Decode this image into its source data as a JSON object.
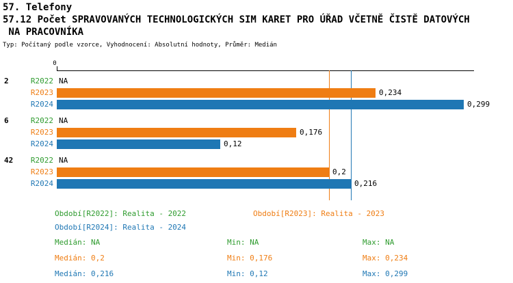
{
  "header": {
    "line1": "57. Telefony",
    "line2": "57.12 Počet SPRAVOVANÝCH TECHNOLOGICKÝCH SIM KARET PRO ÚŘAD VČETNĚ ČISTĚ DATOVÝCH",
    "line3": " NA PRACOVNÍKA",
    "subtitle": "Typ: Počítaný podle vzorce, Vyhodnocení: Absolutní hodnoty, Průměr: Medián"
  },
  "series_colors": {
    "R2022": "#2e9b2e",
    "R2023": "#ef7d13",
    "R2024": "#1f77b4"
  },
  "chart_data": {
    "type": "bar",
    "orientation": "horizontal",
    "x_axis": {
      "zero_label": "0",
      "min": 0,
      "max": 0.305,
      "grid": false
    },
    "groups": [
      {
        "label": "2",
        "rows": [
          {
            "series": "R2022",
            "value": null,
            "display": "NA"
          },
          {
            "series": "R2023",
            "value": 0.234,
            "display": "0,234"
          },
          {
            "series": "R2024",
            "value": 0.299,
            "display": "0,299"
          }
        ]
      },
      {
        "label": "6",
        "rows": [
          {
            "series": "R2022",
            "value": null,
            "display": "NA"
          },
          {
            "series": "R2023",
            "value": 0.176,
            "display": "0,176"
          },
          {
            "series": "R2024",
            "value": 0.12,
            "display": "0,12"
          }
        ]
      },
      {
        "label": "42",
        "rows": [
          {
            "series": "R2022",
            "value": null,
            "display": "NA"
          },
          {
            "series": "R2023",
            "value": 0.2,
            "display": "0,2"
          },
          {
            "series": "R2024",
            "value": 0.216,
            "display": "0,216"
          }
        ]
      }
    ],
    "median_lines": [
      {
        "series": "R2023",
        "value": 0.2
      },
      {
        "series": "R2024",
        "value": 0.216
      }
    ],
    "legend": [
      {
        "series": "R2022",
        "label": "Období[R2022]: Realita - 2022",
        "row": 0,
        "col": 0
      },
      {
        "series": "R2023",
        "label": "Období[R2023]: Realita - 2023",
        "row": 0,
        "col": 1
      },
      {
        "series": "R2024",
        "label": "Období[R2024]: Realita - 2024",
        "row": 1,
        "col": 0
      }
    ],
    "stats": [
      {
        "series": "R2022",
        "median": "Medián: NA",
        "min": "Min: NA",
        "max": "Max: NA"
      },
      {
        "series": "R2023",
        "median": "Medián: 0,2",
        "min": "Min: 0,176",
        "max": "Max: 0,234"
      },
      {
        "series": "R2024",
        "median": "Medián: 0,216",
        "min": "Min: 0,12",
        "max": "Max: 0,299"
      }
    ]
  }
}
